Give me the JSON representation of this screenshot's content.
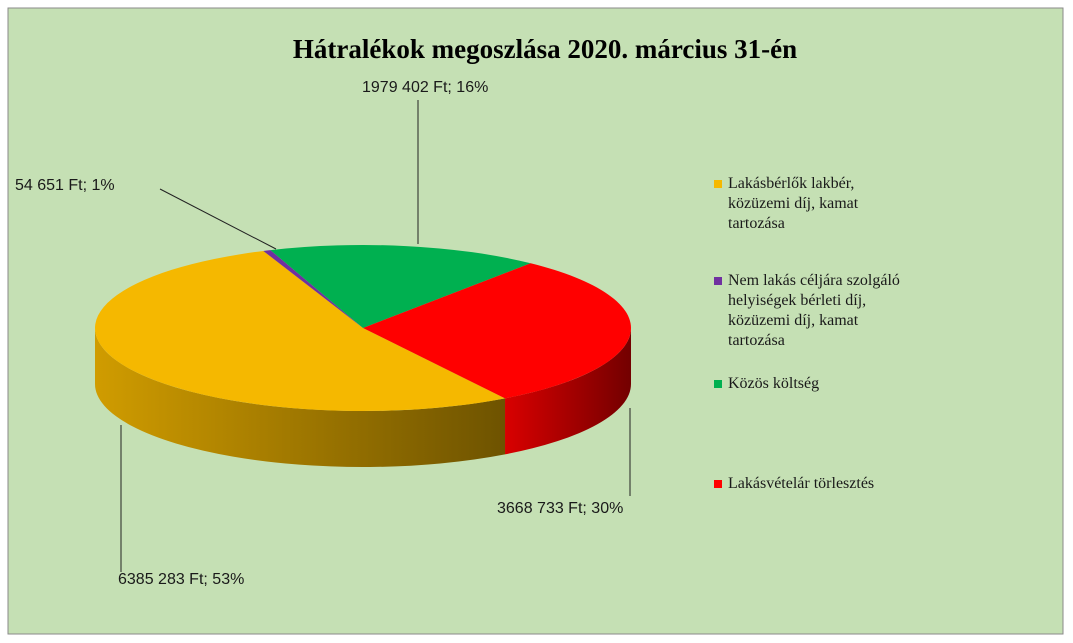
{
  "chart_data": {
    "type": "pie3d",
    "title": "Hátralékok megoszlása 2020. március 31-én",
    "categories": [
      "Lakásbérlők lakbér, közüzemi díj, kamat tartozása",
      "Nem lakás céljára szolgáló helyiségek bérleti díj, közüzemi díj, kamat tartozása",
      "Közös költség",
      "Lakásvételár törlesztés"
    ],
    "values": [
      6385283,
      54651,
      1979402,
      3668733
    ],
    "value_labels": [
      "6385 283 Ft; 53%",
      "54 651 Ft; 1%",
      "1979 402 Ft; 16%",
      "3668 733 Ft; 30%"
    ],
    "colors": [
      "#f5b800",
      "#7030a0",
      "#00b050",
      "#ff0000"
    ],
    "legend": "right"
  }
}
